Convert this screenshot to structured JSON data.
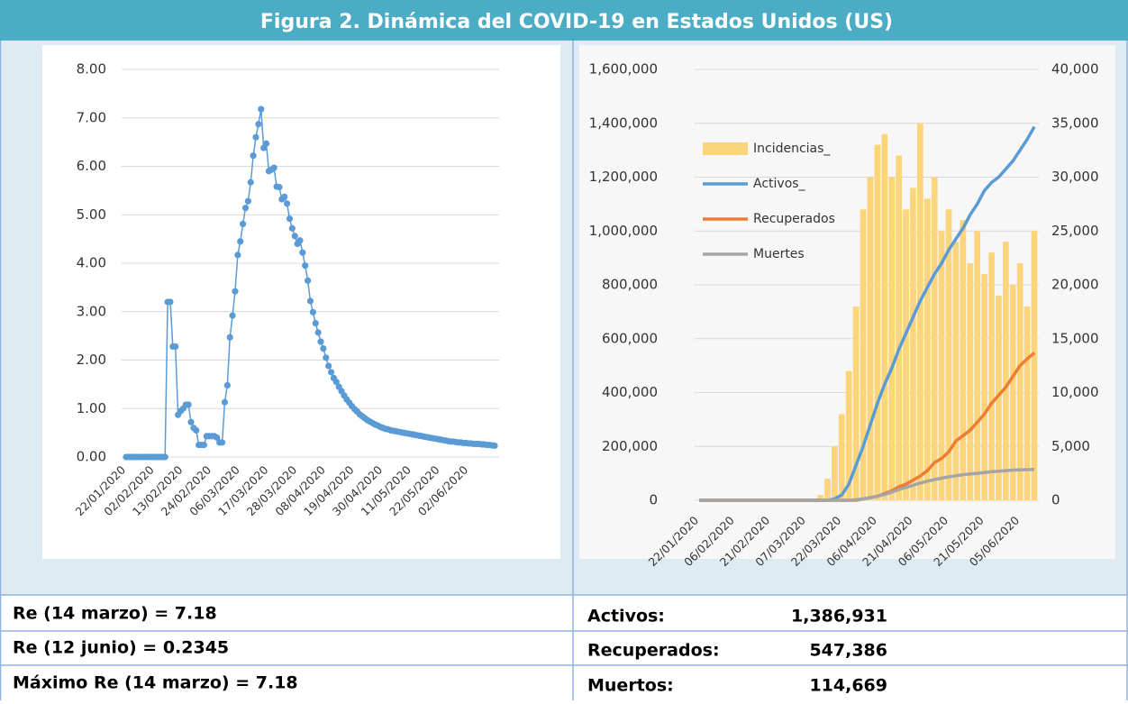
{
  "header": {
    "title": "Figura 2. Dinámica del COVID-19 en Estados Unidos (US)"
  },
  "chart_data": [
    {
      "type": "scatter-line",
      "grid": true,
      "color": "#5b9bd5",
      "categories": [
        "22/01/2020",
        null,
        null,
        null,
        null,
        null,
        null,
        null,
        null,
        null,
        null,
        "02/02/2020",
        null,
        null,
        null,
        null,
        null,
        null,
        null,
        null,
        null,
        null,
        "13/02/2020",
        null,
        null,
        null,
        null,
        null,
        null,
        null,
        null,
        null,
        null,
        "24/02/2020",
        null,
        null,
        null,
        null,
        null,
        null,
        null,
        null,
        null,
        null,
        "06/03/2020",
        null,
        null,
        null,
        null,
        null,
        null,
        null,
        null,
        null,
        null,
        "17/03/2020",
        null,
        null,
        null,
        null,
        null,
        null,
        null,
        null,
        null,
        null,
        "28/03/2020",
        null,
        null,
        null,
        null,
        null,
        null,
        null,
        null,
        null,
        null,
        "08/04/2020",
        null,
        null,
        null,
        null,
        null,
        null,
        null,
        null,
        null,
        null,
        "19/04/2020",
        null,
        null,
        null,
        null,
        null,
        null,
        null,
        null,
        null,
        null,
        "30/04/2020",
        null,
        null,
        null,
        null,
        null,
        null,
        null,
        null,
        null,
        null,
        "11/05/2020",
        null,
        null,
        null,
        null,
        null,
        null,
        null,
        null,
        null,
        null,
        "22/05/2020",
        null,
        null,
        null,
        null,
        null,
        null,
        null,
        null,
        null,
        null,
        "02/06/2020",
        null,
        null,
        null,
        null,
        null,
        null,
        null,
        null,
        null,
        null
      ],
      "values": [
        0,
        0,
        0,
        0,
        0,
        0,
        0,
        0,
        0,
        0,
        0,
        0,
        0,
        0,
        0,
        0,
        3.2,
        3.2,
        2.28,
        2.28,
        0.87,
        0.95,
        1.0,
        1.08,
        1.08,
        0.72,
        0.6,
        0.55,
        0.25,
        0.25,
        0.25,
        0.43,
        0.43,
        0.43,
        0.43,
        0.4,
        0.3,
        0.3,
        1.13,
        1.48,
        2.47,
        2.92,
        3.42,
        4.17,
        4.45,
        4.81,
        5.14,
        5.28,
        5.67,
        6.22,
        6.6,
        6.87,
        7.18,
        6.38,
        6.47,
        5.9,
        5.93,
        5.97,
        5.58,
        5.57,
        5.32,
        5.37,
        5.23,
        4.92,
        4.72,
        4.56,
        4.4,
        4.47,
        4.22,
        3.95,
        3.64,
        3.22,
        2.99,
        2.76,
        2.57,
        2.38,
        2.24,
        2.05,
        1.88,
        1.75,
        1.63,
        1.55,
        1.45,
        1.36,
        1.27,
        1.19,
        1.12,
        1.05,
        0.99,
        0.94,
        0.88,
        0.84,
        0.8,
        0.76,
        0.73,
        0.7,
        0.67,
        0.65,
        0.62,
        0.6,
        0.58,
        0.57,
        0.55,
        0.54,
        0.53,
        0.52,
        0.51,
        0.5,
        0.49,
        0.48,
        0.47,
        0.46,
        0.45,
        0.44,
        0.43,
        0.42,
        0.41,
        0.4,
        0.39,
        0.38,
        0.37,
        0.36,
        0.35,
        0.34,
        0.33,
        0.32,
        0.32,
        0.31,
        0.3,
        0.3,
        0.29,
        0.29,
        0.28,
        0.28,
        0.27,
        0.27,
        0.27,
        0.26,
        0.26,
        0.25,
        0.25,
        0.24,
        0.2345
      ],
      "ylim": [
        0,
        8
      ],
      "yticks": [
        {
          "value": 0,
          "label": "0.00"
        },
        {
          "value": 1,
          "label": "1.00"
        },
        {
          "value": 2,
          "label": "2.00"
        },
        {
          "value": 3,
          "label": "3.00"
        },
        {
          "value": 4,
          "label": "4.00"
        },
        {
          "value": 5,
          "label": "5.00"
        },
        {
          "value": 6,
          "label": "6.00"
        },
        {
          "value": 7,
          "label": "7.00"
        },
        {
          "value": 8,
          "label": "8.00"
        }
      ]
    },
    {
      "type": "bar-line",
      "grid": true,
      "legend": "upper left",
      "categories": [
        "22/01/2020",
        null,
        null,
        null,
        null,
        "06/02/2020",
        null,
        null,
        null,
        null,
        "21/02/2020",
        null,
        null,
        null,
        null,
        "07/03/2020",
        null,
        null,
        null,
        null,
        "22/03/2020",
        null,
        null,
        null,
        null,
        "06/04/2020",
        null,
        null,
        null,
        null,
        "21/04/2020",
        null,
        null,
        null,
        null,
        "06/05/2020",
        null,
        null,
        null,
        null,
        "21/05/2020",
        null,
        null,
        null,
        null,
        "05/06/2020",
        null,
        null
      ],
      "series": [
        {
          "name": "Incidencias_",
          "type": "bar",
          "axis": "y2",
          "color": "#fcd47a",
          "values": [
            0,
            0,
            0,
            0,
            0,
            0,
            0,
            0,
            0,
            0,
            0,
            0,
            0,
            0,
            0,
            0,
            0,
            500,
            2000,
            5000,
            8000,
            12000,
            18000,
            27000,
            30000,
            33000,
            34000,
            30000,
            32000,
            27000,
            29000,
            35000,
            28000,
            30000,
            25000,
            27000,
            24000,
            26000,
            22000,
            25000,
            21000,
            23000,
            19000,
            24000,
            20000,
            22000,
            18000,
            25000
          ]
        },
        {
          "name": "Activos_",
          "type": "line",
          "color": "#5b9bd5",
          "values": [
            0,
            0,
            0,
            0,
            0,
            0,
            0,
            0,
            0,
            0,
            0,
            0,
            0,
            0,
            0,
            0,
            0,
            0,
            0,
            5000,
            20000,
            60000,
            130000,
            200000,
            280000,
            360000,
            430000,
            490000,
            560000,
            620000,
            680000,
            740000,
            790000,
            840000,
            880000,
            930000,
            970000,
            1010000,
            1060000,
            1100000,
            1150000,
            1180000,
            1200000,
            1230000,
            1260000,
            1300000,
            1340000,
            1386931
          ]
        },
        {
          "name": "Recuperados",
          "type": "line",
          "color": "#ed7d31",
          "values": [
            0,
            0,
            0,
            0,
            0,
            0,
            0,
            0,
            0,
            0,
            0,
            0,
            0,
            0,
            0,
            0,
            0,
            0,
            0,
            0,
            0,
            0,
            0,
            5000,
            10000,
            15000,
            25000,
            35000,
            50000,
            60000,
            75000,
            90000,
            110000,
            140000,
            155000,
            180000,
            220000,
            240000,
            260000,
            290000,
            320000,
            360000,
            390000,
            420000,
            460000,
            500000,
            525000,
            547386
          ]
        },
        {
          "name": "Muertes",
          "type": "line",
          "color": "#a5a5a5",
          "values": [
            0,
            0,
            0,
            0,
            0,
            0,
            0,
            0,
            0,
            0,
            0,
            0,
            0,
            0,
            0,
            0,
            0,
            0,
            0,
            0,
            0,
            0,
            2000,
            5000,
            9000,
            15000,
            22000,
            30000,
            40000,
            48000,
            56000,
            64000,
            71000,
            77000,
            82000,
            87000,
            91000,
            95000,
            98000,
            100000,
            103000,
            106000,
            108000,
            110000,
            112000,
            113000,
            114000,
            114669
          ]
        }
      ],
      "ylim": [
        0,
        1600000
      ],
      "yticks": [
        0,
        {
          "value": 200000,
          "label": "200,000"
        },
        {
          "value": 400000,
          "label": "400,000"
        },
        {
          "value": 600000,
          "label": "600,000"
        },
        {
          "value": 800000,
          "label": "800,000"
        },
        {
          "value": 1000000,
          "label": "1,000,000"
        },
        {
          "value": 1200000,
          "label": "1,200,000"
        },
        {
          "value": 1400000,
          "label": "1,400,000"
        },
        {
          "value": 1600000,
          "label": "1,600,000"
        }
      ],
      "y2lim": [
        0,
        40000
      ],
      "y2ticks": [
        0,
        {
          "value": 5000,
          "label": "5,000"
        },
        {
          "value": 10000,
          "label": "10,000"
        },
        {
          "value": 15000,
          "label": "15,000"
        },
        {
          "value": 20000,
          "label": "20,000"
        },
        {
          "value": 25000,
          "label": "25,000"
        },
        {
          "value": 30000,
          "label": "30,000"
        },
        {
          "value": 35000,
          "label": "35,000"
        },
        {
          "value": 40000,
          "label": "40,000"
        }
      ]
    }
  ],
  "table": {
    "rows": [
      [
        "Re (14 marzo) = 7.18",
        "Activos:",
        "1,386,931"
      ],
      [
        "Re (12 junio) = 0.2345",
        "Recuperados:",
        "547,386"
      ],
      [
        "Máximo Re (14 marzo) = 7.18",
        "Muertos:",
        "114,669"
      ]
    ]
  }
}
